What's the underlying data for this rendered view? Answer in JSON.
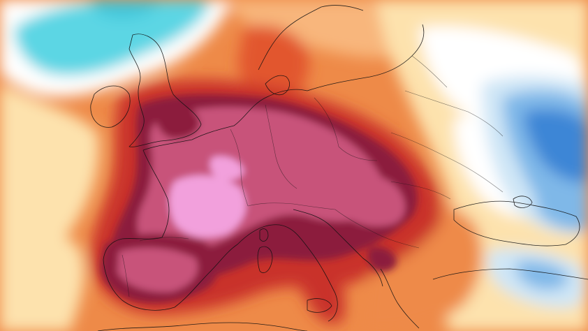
{
  "map": {
    "type": "temperature-anomaly-heatmap",
    "region": "Europe",
    "palette": {
      "extreme_hot": "#f2a0dc",
      "very_hot_pink": "#c8527a",
      "hot_maroon": "#8c1f3c",
      "hot_red": "#c9302c",
      "warm_orange_red": "#e2562f",
      "warm_orange": "#ee8a48",
      "mild_light_orange": "#f8b67c",
      "near_neutral_cream": "#fde2ad",
      "neutral_white": "#ffffff",
      "cool_light_blue": "#cfe6f6",
      "cool_blue": "#7fb8e8",
      "cold_blue": "#3d86d6",
      "cool_cyan": "#5cd6e4",
      "border_line": "#111111"
    },
    "legend_visible": false,
    "title_visible": false
  }
}
